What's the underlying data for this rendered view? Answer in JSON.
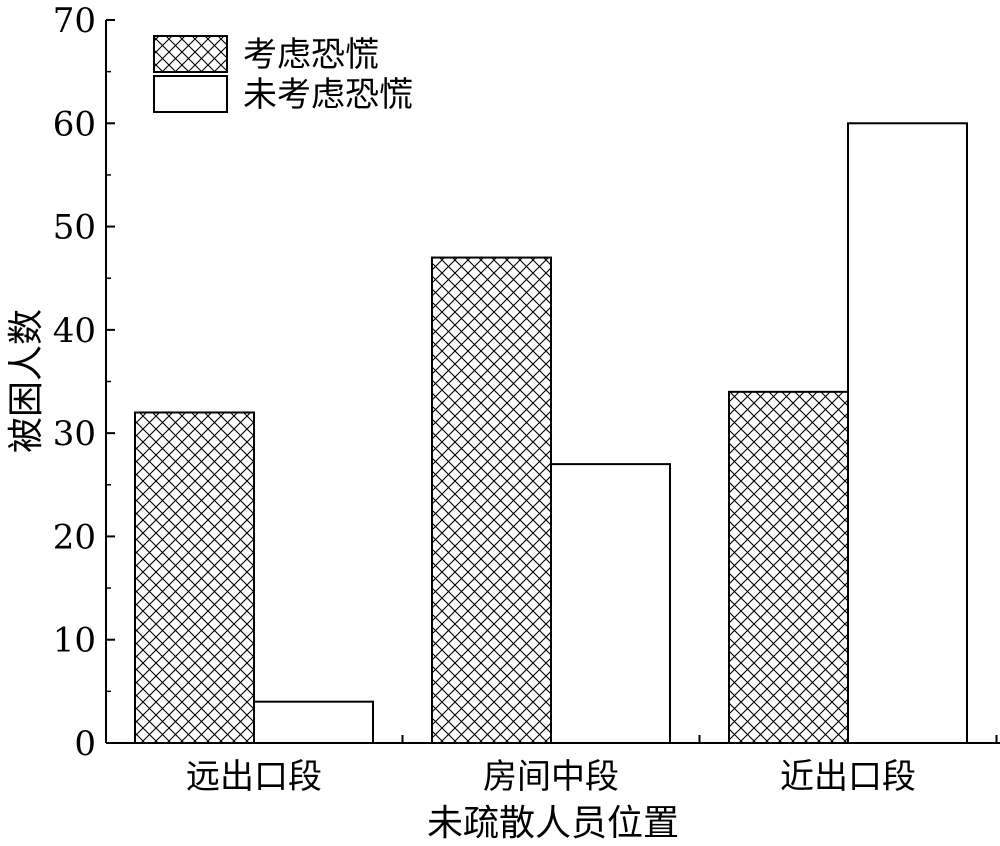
{
  "chart_data": {
    "type": "bar",
    "title": "",
    "xlabel": "未疏散人员位置",
    "ylabel": "被困人数",
    "categories": [
      "远出口段",
      "房间中段",
      "近出口段"
    ],
    "series": [
      {
        "name": "考虑恐慌",
        "values": [
          32,
          47,
          34
        ],
        "pattern": "crosshatch",
        "fill": "#ffffff",
        "stroke": "#000000"
      },
      {
        "name": "未考虑恐慌",
        "values": [
          4,
          27,
          60
        ],
        "pattern": "none",
        "fill": "#ffffff",
        "stroke": "#000000"
      }
    ],
    "ylim": [
      0,
      70
    ],
    "yticks": [
      0,
      10,
      20,
      30,
      40,
      50,
      60,
      70
    ],
    "grid": false,
    "legend_position": "top-left"
  }
}
